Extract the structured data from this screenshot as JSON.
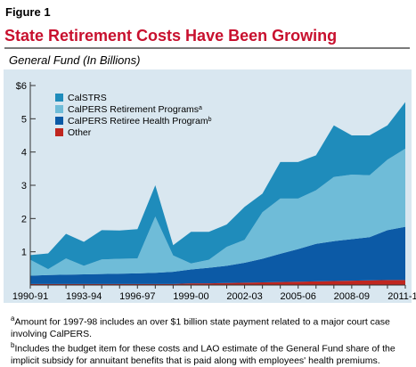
{
  "figure_label": "Figure 1",
  "title": "State Retirement Costs Have Been Growing",
  "subtitle": "General Fund (In Billions)",
  "colors": {
    "title_red": "#c8102e",
    "calstrs": "#1f8cbb",
    "calpers_retirement": "#6fbcd8",
    "calpers_health": "#0c5aa6",
    "other": "#c0261f",
    "panel": "#d9e7f0"
  },
  "notes": [
    {
      "marker": "a",
      "text": "Amount for 1997-98 includes an over $1 billion state payment related to a major court case involving CalPERS."
    },
    {
      "marker": "b",
      "text": "Includes the budget item for these costs and LAO estimate of the General Fund share of the implicit subsidy for annuitant benefits that is paid along with employees' health premiums."
    }
  ],
  "chart_data": {
    "type": "area",
    "stacked": true,
    "x": [
      "1990-91",
      "1991-92",
      "1992-93",
      "1993-94",
      "1994-95",
      "1995-96",
      "1996-97",
      "1997-98",
      "1998-99",
      "1999-00",
      "2000-01",
      "2001-02",
      "2002-03",
      "2003-04",
      "2004-05",
      "2005-06",
      "2006-07",
      "2007-08",
      "2008-09",
      "2009-10",
      "2010-11",
      "2011-12"
    ],
    "x_tick_labels": [
      "1990-91",
      "1993-94",
      "1996-97",
      "1999-00",
      "2002-03",
      "2005-06",
      "2008-09",
      "2011-12"
    ],
    "x_tick_indices": [
      0,
      3,
      6,
      9,
      12,
      15,
      18,
      21
    ],
    "y_ticks": [
      {
        "value": 1,
        "label": "1"
      },
      {
        "value": 2,
        "label": "2"
      },
      {
        "value": 3,
        "label": "3"
      },
      {
        "value": 4,
        "label": "4"
      },
      {
        "value": 5,
        "label": "5"
      },
      {
        "value": 6,
        "label": "$6"
      }
    ],
    "ylim": [
      0,
      6
    ],
    "legend_position": "top-left",
    "series": [
      {
        "name": "Other",
        "color": "#c0261f",
        "values": [
          0.03,
          0.03,
          0.03,
          0.03,
          0.03,
          0.03,
          0.03,
          0.03,
          0.03,
          0.05,
          0.05,
          0.06,
          0.07,
          0.08,
          0.09,
          0.1,
          0.11,
          0.12,
          0.13,
          0.14,
          0.15,
          0.15
        ]
      },
      {
        "name": "CalPERS Retiree Health Program",
        "name_sup": "b",
        "color": "#0c5aa6",
        "values": [
          0.25,
          0.27,
          0.28,
          0.29,
          0.3,
          0.31,
          0.32,
          0.34,
          0.37,
          0.42,
          0.47,
          0.52,
          0.6,
          0.71,
          0.85,
          0.98,
          1.13,
          1.2,
          1.25,
          1.3,
          1.5,
          1.6
        ]
      },
      {
        "name": "CalPERS Retirement Programs",
        "name_sup": "a",
        "color": "#6fbcd8",
        "values": [
          0.48,
          0.18,
          0.49,
          0.26,
          0.44,
          0.45,
          0.45,
          1.69,
          0.49,
          0.18,
          0.24,
          0.57,
          0.69,
          1.4,
          1.66,
          1.52,
          1.61,
          1.93,
          1.94,
          1.86,
          2.12,
          2.35
        ]
      },
      {
        "name": "CalSTRS",
        "color": "#1f8cbb",
        "values": [
          0.14,
          0.47,
          0.74,
          0.72,
          0.88,
          0.85,
          0.88,
          0.94,
          0.31,
          0.95,
          0.84,
          0.67,
          0.99,
          0.56,
          1.1,
          1.1,
          1.05,
          1.55,
          1.18,
          1.2,
          1.03,
          1.4
        ]
      }
    ],
    "legend": [
      {
        "name": "CalSTRS",
        "color": "#1f8cbb"
      },
      {
        "name": "CalPERS Retirement Programs",
        "sup": "a",
        "color": "#6fbcd8"
      },
      {
        "name": "CalPERS Retiree Health Program",
        "sup": "b",
        "color": "#0c5aa6"
      },
      {
        "name": "Other",
        "color": "#c0261f"
      }
    ]
  }
}
